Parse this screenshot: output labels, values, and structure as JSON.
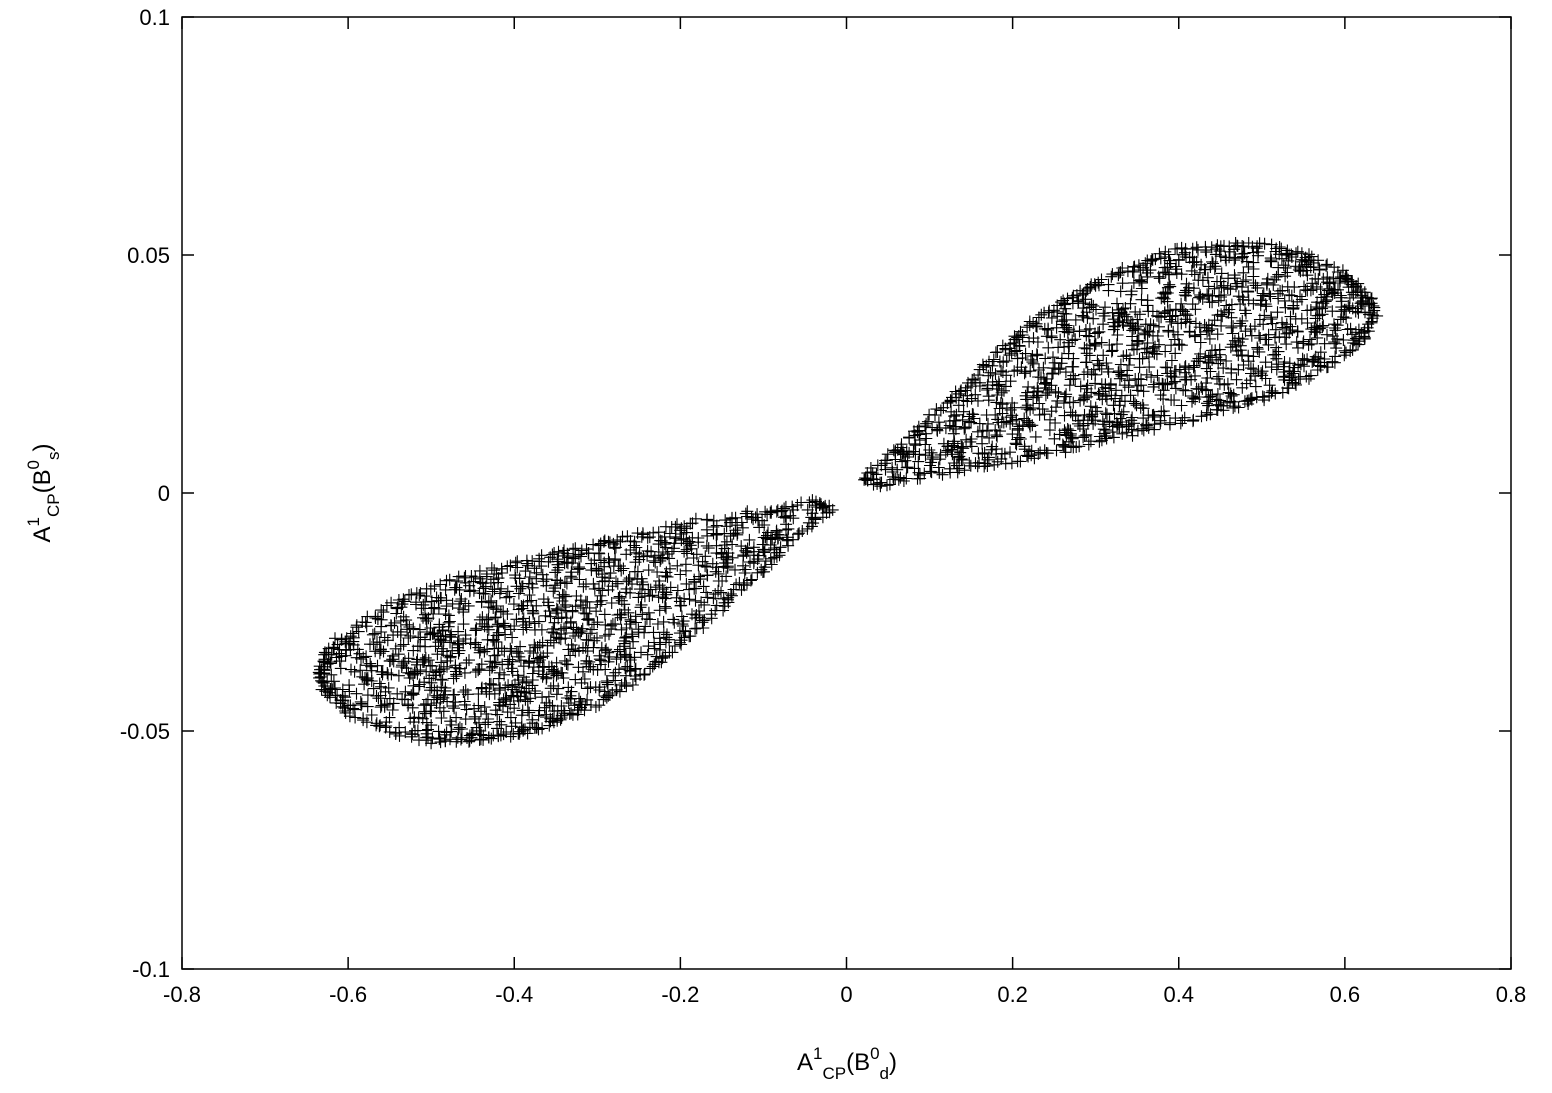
{
  "chart_data": {
    "type": "scatter",
    "marker": "plus",
    "marker_color": "#000000",
    "xlabel": {
      "base": "A",
      "sup1": "1",
      "sub1": "CP",
      "open": "(B",
      "sup2": "0",
      "sub2": "d",
      "close": ")"
    },
    "ylabel": {
      "base": "A",
      "sup1": "1",
      "sub1": "CP",
      "open": "(B",
      "sup2": "0",
      "sub2": "s",
      "close": ")"
    },
    "xlim": [
      -0.8,
      0.8
    ],
    "ylim": [
      -0.1,
      0.1
    ],
    "xticks": [
      -0.8,
      -0.6,
      -0.4,
      -0.2,
      0,
      0.2,
      0.4,
      0.6,
      0.8
    ],
    "xtick_labels": [
      "-0.8",
      "-0.6",
      "-0.4",
      "-0.2",
      "0",
      "0.2",
      "0.4",
      "0.6",
      "0.8"
    ],
    "yticks": [
      -0.1,
      -0.05,
      0,
      0.05,
      0.1
    ],
    "ytick_labels": [
      "-0.1",
      "-0.05",
      "0",
      "0.05",
      "0.1"
    ],
    "grid": false,
    "legend": "none",
    "series": [
      {
        "region_outline": [
          [
            0.02,
            0.003
          ],
          [
            0.06,
            0.009
          ],
          [
            0.1,
            0.016
          ],
          [
            0.14,
            0.022
          ],
          [
            0.18,
            0.029
          ],
          [
            0.22,
            0.035
          ],
          [
            0.26,
            0.04
          ],
          [
            0.3,
            0.044
          ],
          [
            0.35,
            0.048
          ],
          [
            0.4,
            0.051
          ],
          [
            0.45,
            0.052
          ],
          [
            0.5,
            0.052
          ],
          [
            0.55,
            0.05
          ],
          [
            0.6,
            0.046
          ],
          [
            0.63,
            0.041
          ],
          [
            0.635,
            0.037
          ],
          [
            0.62,
            0.032
          ],
          [
            0.58,
            0.027
          ],
          [
            0.53,
            0.022
          ],
          [
            0.47,
            0.018
          ],
          [
            0.4,
            0.015
          ],
          [
            0.33,
            0.012
          ],
          [
            0.26,
            0.009
          ],
          [
            0.18,
            0.006
          ],
          [
            0.1,
            0.004
          ],
          [
            0.04,
            0.002
          ]
        ]
      },
      {
        "region_outline": [
          [
            -0.02,
            -0.003
          ],
          [
            -0.06,
            -0.009
          ],
          [
            -0.1,
            -0.016
          ],
          [
            -0.14,
            -0.022
          ],
          [
            -0.18,
            -0.029
          ],
          [
            -0.22,
            -0.035
          ],
          [
            -0.26,
            -0.04
          ],
          [
            -0.3,
            -0.044
          ],
          [
            -0.35,
            -0.048
          ],
          [
            -0.4,
            -0.051
          ],
          [
            -0.45,
            -0.052
          ],
          [
            -0.5,
            -0.052
          ],
          [
            -0.55,
            -0.05
          ],
          [
            -0.6,
            -0.046
          ],
          [
            -0.63,
            -0.041
          ],
          [
            -0.635,
            -0.037
          ],
          [
            -0.62,
            -0.032
          ],
          [
            -0.58,
            -0.027
          ],
          [
            -0.53,
            -0.022
          ],
          [
            -0.47,
            -0.018
          ],
          [
            -0.4,
            -0.015
          ],
          [
            -0.33,
            -0.012
          ],
          [
            -0.26,
            -0.009
          ],
          [
            -0.18,
            -0.006
          ],
          [
            -0.1,
            -0.004
          ],
          [
            -0.04,
            -0.002
          ]
        ]
      }
    ]
  }
}
